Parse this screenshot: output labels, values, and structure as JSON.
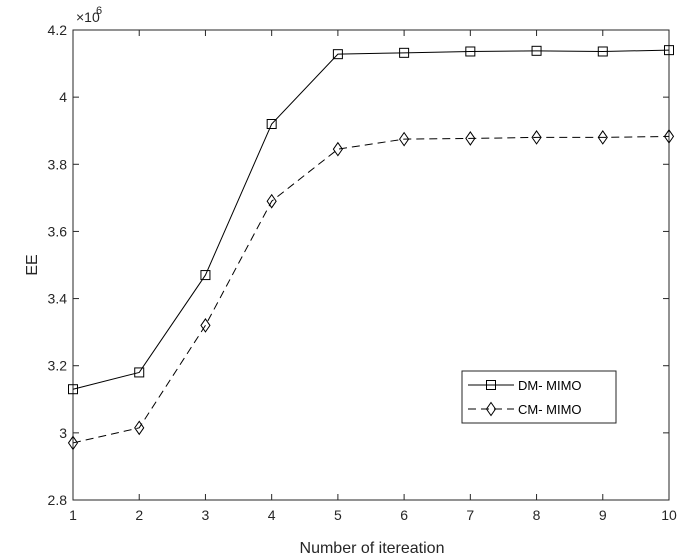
{
  "chart_data": {
    "type": "line",
    "title": "",
    "xlabel": "Number of itereation",
    "ylabel": "EE",
    "exponent_label": "×10",
    "exponent_power": "6",
    "x": [
      1,
      2,
      3,
      4,
      5,
      6,
      7,
      8,
      9,
      10
    ],
    "xlim": [
      1,
      10
    ],
    "ylim": [
      2.8,
      4.2
    ],
    "xticks": [
      1,
      2,
      3,
      4,
      5,
      6,
      7,
      8,
      9,
      10
    ],
    "xtick_labels": [
      "1",
      "2",
      "3",
      "4",
      "5",
      "6",
      "7",
      "8",
      "9",
      "10"
    ],
    "yticks": [
      2.8,
      3,
      3.2,
      3.4,
      3.6,
      3.8,
      4,
      4.2
    ],
    "ytick_labels": [
      "2.8",
      "3",
      "3.2",
      "3.4",
      "3.6",
      "3.8",
      "4",
      "4.2"
    ],
    "grid": false,
    "legend_position": "lower-right",
    "series": [
      {
        "name": "DM- MIMO",
        "marker": "square",
        "line_style": "solid",
        "color": "#000000",
        "values": [
          3.13,
          3.18,
          3.47,
          3.92,
          4.128,
          4.132,
          4.136,
          4.138,
          4.136,
          4.14
        ]
      },
      {
        "name": "CM- MIMO",
        "marker": "diamond",
        "line_style": "dashed",
        "color": "#000000",
        "values": [
          2.97,
          3.015,
          3.32,
          3.69,
          3.845,
          3.875,
          3.877,
          3.88,
          3.88,
          3.883
        ]
      }
    ]
  }
}
